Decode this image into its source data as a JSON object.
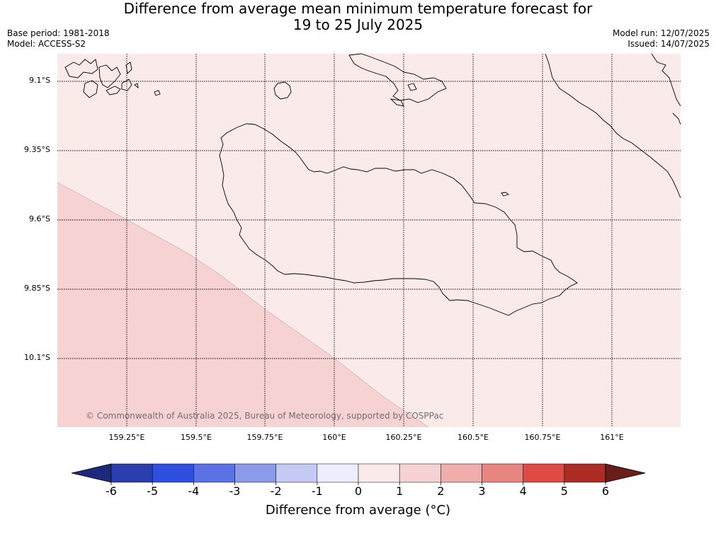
{
  "title": {
    "line1": "Difference from average mean minimum temperature forecast for",
    "line2": "19 to 25 July 2025"
  },
  "meta_left": {
    "base_period": "Base period: 1981-2018",
    "model": "Model: ACCESS-S2"
  },
  "meta_right": {
    "model_run": "Model run: 12/07/2025",
    "issued": "Issued: 14/07/2025"
  },
  "map": {
    "lat_labels": [
      "9.1°S",
      "9.35°S",
      "9.6°S",
      "9.85°S",
      "10.1°S"
    ],
    "lon_labels": [
      "159.25°E",
      "159.5°E",
      "159.75°E",
      "160°E",
      "160.25°E",
      "160.5°E",
      "160.75°E",
      "161°E"
    ],
    "copyright": "© Commonwealth of Australia 2025, Bureau of Meteorology, supported by COSPPac",
    "fill_categories": {
      "background_bin": "0 to 1",
      "southwest_bin": "1 to 2"
    }
  },
  "colorbar": {
    "label": "Difference from average (°C)",
    "ticks": [
      "-6",
      "-5",
      "-4",
      "-3",
      "-2",
      "-1",
      "0",
      "1",
      "2",
      "3",
      "4",
      "5",
      "6"
    ],
    "colors": [
      "#1c2a7e",
      "#2a3eae",
      "#2f50de",
      "#5b72e4",
      "#8b9bea",
      "#c4caf4",
      "#eceefd",
      "#fbeaea",
      "#f6d3d2",
      "#efaeab",
      "#e98682",
      "#dd4b42",
      "#ac2b25",
      "#6b1d1b"
    ]
  }
}
